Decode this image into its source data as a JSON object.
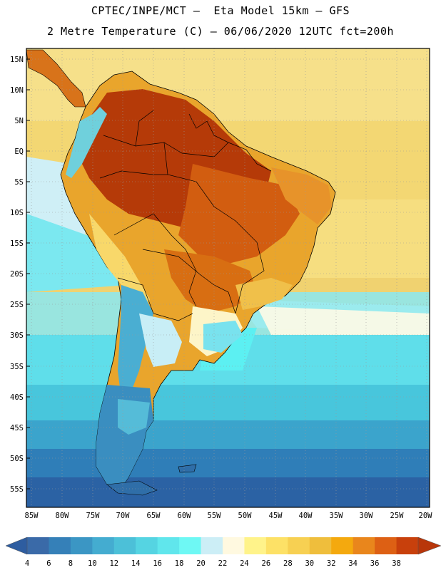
{
  "header": {
    "line1": "CPTEC/INPE/MCT –  Eta Model 15km – GFS",
    "line2": "2 Metre Temperature (C) – 06/06/2020 12UTC fct=200h"
  },
  "map": {
    "lat_labels": [
      "15N",
      "10N",
      "5N",
      "EQ",
      "5S",
      "10S",
      "15S",
      "20S",
      "25S",
      "30S",
      "35S",
      "40S",
      "45S",
      "50S",
      "55S"
    ],
    "lon_labels": [
      "85W",
      "80W",
      "75W",
      "70W",
      "65W",
      "60W",
      "55W",
      "50W",
      "45W",
      "40W",
      "35W",
      "30W",
      "25W",
      "20W"
    ],
    "background_color": "#f2e89a",
    "ocean_colors": {
      "tropical": "#f5dd7a",
      "subtropical": "#fffbe0",
      "midlat": "#5be0ec",
      "south": "#3aa4c8",
      "deep_south": "#2c6aa6"
    },
    "land_colors": {
      "amazon": "#b53a08",
      "warm": "#d6650e",
      "mild": "#e7a22e",
      "andes_cold": "#63d6e4",
      "patagonia": "#3b8fbf"
    }
  },
  "colorbar": {
    "ticks": [
      "4",
      "6",
      "8",
      "10",
      "12",
      "14",
      "16",
      "18",
      "20",
      "22",
      "24",
      "26",
      "28",
      "30",
      "32",
      "34",
      "36",
      "38"
    ],
    "colors": [
      "#3a6aa8",
      "#3580b8",
      "#3b96c4",
      "#44acd0",
      "#4cc0d8",
      "#55d4e2",
      "#60e6ec",
      "#6ef8f4",
      "#cceef6",
      "#fff9e0",
      "#fff38a",
      "#fde166",
      "#f7d052",
      "#efbe3c",
      "#f4a90e",
      "#e9861c",
      "#dd6014",
      "#c8400c"
    ],
    "low_end_color": "#2e5da0",
    "high_end_color": "#b8360a"
  }
}
